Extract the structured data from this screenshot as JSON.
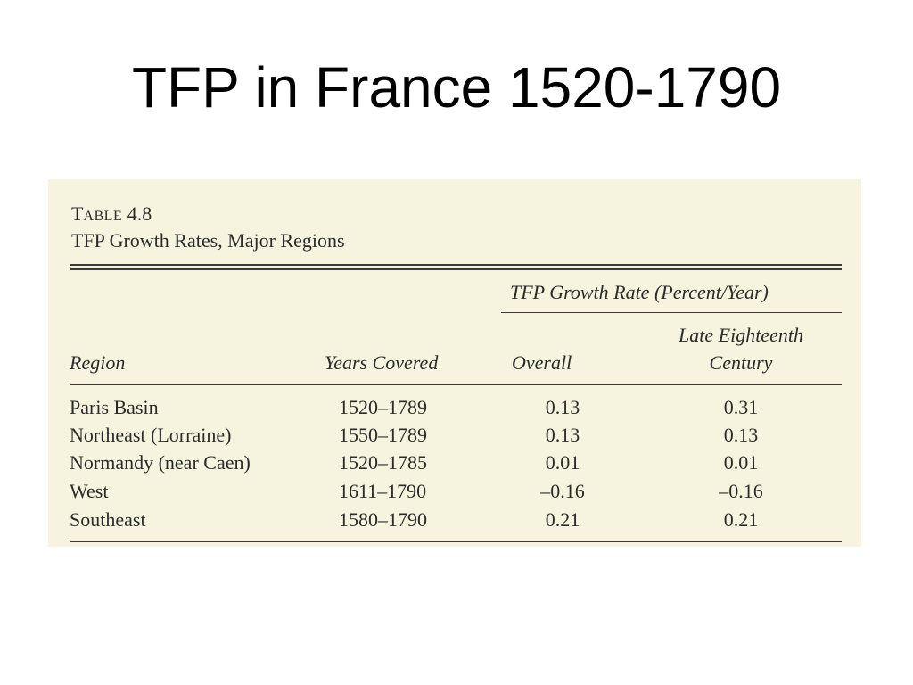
{
  "slide": {
    "title": "TFP in France 1520-1790"
  },
  "table": {
    "label_prefix": "T",
    "label_small": "ABLE",
    "label_number": "4.8",
    "title": "TFP Growth Rates, Major Regions",
    "group_header": "TFP Growth Rate (Percent/Year)",
    "columns": {
      "region": "Region",
      "years": "Years Covered",
      "overall": "Overall",
      "late_line1": "Late Eighteenth",
      "late_line2": "Century"
    },
    "rows": [
      {
        "region": "Paris Basin",
        "years": "1520–1789",
        "overall": "0.13",
        "late": "0.31"
      },
      {
        "region": "Northeast (Lorraine)",
        "years": "1550–1789",
        "overall": "0.13",
        "late": "0.13"
      },
      {
        "region": "Normandy (near Caen)",
        "years": "1520–1785",
        "overall": "0.01",
        "late": "0.01"
      },
      {
        "region": "West",
        "years": "1611–1790",
        "overall": "–0.16",
        "late": "–0.16"
      },
      {
        "region": "Southeast",
        "years": "1580–1790",
        "overall": "0.21",
        "late": "0.21"
      }
    ]
  }
}
